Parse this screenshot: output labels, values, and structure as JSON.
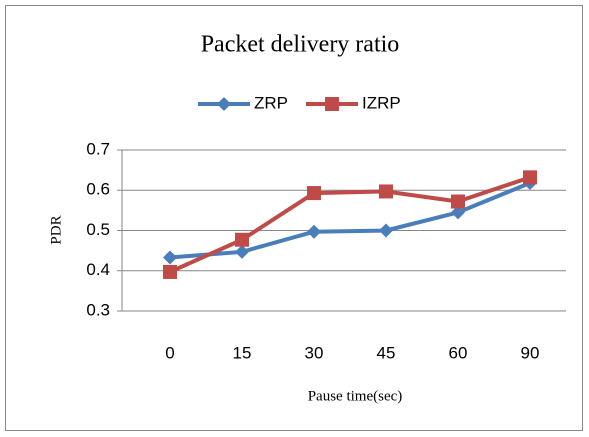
{
  "chart_data": {
    "type": "line",
    "title": "Packet delivery ratio",
    "x_label": "Pause time(sec)",
    "y_label": "PDR",
    "categories": [
      "0",
      "15",
      "30",
      "45",
      "60",
      "90"
    ],
    "series": [
      {
        "name": "ZRP",
        "color": "#4a7ebb",
        "marker": "diamond",
        "values": [
          0.433,
          0.447,
          0.497,
          0.5,
          0.545,
          0.618
        ]
      },
      {
        "name": "IZRP",
        "color": "#be4b48",
        "marker": "square",
        "values": [
          0.397,
          0.477,
          0.593,
          0.597,
          0.572,
          0.632
        ]
      }
    ],
    "ylim": [
      0.3,
      0.7
    ],
    "yticks": [
      0.3,
      0.4,
      0.5,
      0.6,
      0.7
    ],
    "grid": true,
    "legend": "top"
  }
}
